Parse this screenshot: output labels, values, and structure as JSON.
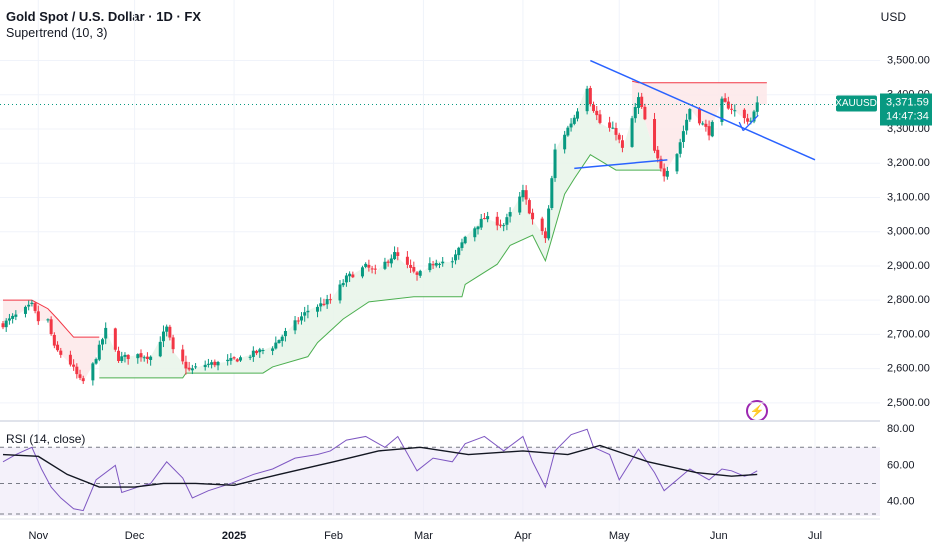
{
  "header": {
    "title": "Gold Spot / U.S. Dollar · 1D · FX",
    "indicator": "Supertrend (10, 3)",
    "currency": "USD"
  },
  "price_panel": {
    "symbol_tag": "XAUUSD",
    "last_price": "3,371.59",
    "countdown": "14:47:34",
    "colors": {
      "up": "#089981",
      "down": "#f23645",
      "supertrend_up_line": "#4caf50",
      "supertrend_up_fill": "#e8f5e9",
      "supertrend_down_line": "#f23645",
      "supertrend_down_fill": "#fde7e9",
      "trendline": "#2962ff",
      "price_tag": "#089981"
    }
  },
  "rsi_panel": {
    "label": "RSI (14, close)",
    "colors": {
      "rsi": "#7e57c2",
      "ma": "#131722",
      "band_fill": "#ede7f6"
    }
  },
  "icons": {
    "alert": "lightning-icon"
  },
  "chart_data": [
    {
      "type": "candlestick",
      "title": "Gold Spot / U.S. Dollar · 1D · FX",
      "ylim": [
        2450,
        3560
      ],
      "y_ticks": [
        2500,
        2600,
        2700,
        2800,
        2900,
        3000,
        3100,
        3200,
        3300,
        3400,
        3500
      ],
      "y_tick_labels": [
        "2,500.00",
        "2,600.00",
        "2,700.00",
        "2,800.00",
        "2,900.00",
        "3,000.00",
        "3,100.00",
        "3,200.00",
        "3,300.00",
        "3,400.00",
        "3,500.00"
      ],
      "x_tick_labels": [
        "Nov",
        "Dec",
        "2025",
        "Feb",
        "Mar",
        "Apr",
        "May",
        "Jun",
        "Jul"
      ],
      "x_tick_dates": [
        "2024-11-01",
        "2024-12-01",
        "2025-01-01",
        "2025-02-01",
        "2025-03-01",
        "2025-04-01",
        "2025-05-01",
        "2025-06-01",
        "2025-07-01"
      ],
      "close_path": [
        [
          "2024-10-21",
          2730
        ],
        [
          "2024-10-30",
          2785
        ],
        [
          "2024-11-01",
          2740
        ],
        [
          "2024-11-04",
          2740
        ],
        [
          "2024-11-06",
          2660
        ],
        [
          "2024-11-11",
          2615
        ],
        [
          "2024-11-14",
          2565
        ],
        [
          "2024-11-15",
          2562
        ],
        [
          "2024-11-18",
          2610
        ],
        [
          "2024-11-22",
          2712
        ],
        [
          "2024-11-26",
          2630
        ],
        [
          "2024-12-02",
          2640
        ],
        [
          "2024-12-06",
          2635
        ],
        [
          "2024-12-11",
          2718
        ],
        [
          "2024-12-13",
          2650
        ],
        [
          "2024-12-18",
          2595
        ],
        [
          "2024-12-23",
          2612
        ],
        [
          "2024-12-30",
          2620
        ],
        [
          "2025-01-06",
          2640
        ],
        [
          "2025-01-13",
          2665
        ],
        [
          "2025-01-17",
          2705
        ],
        [
          "2025-01-24",
          2770
        ],
        [
          "2025-01-31",
          2800
        ],
        [
          "2025-02-05",
          2865
        ],
        [
          "2025-02-11",
          2898
        ],
        [
          "2025-02-14",
          2882
        ],
        [
          "2025-02-20",
          2935
        ],
        [
          "2025-02-27",
          2870
        ],
        [
          "2025-03-05",
          2915
        ],
        [
          "2025-03-10",
          2910
        ],
        [
          "2025-03-14",
          2985
        ],
        [
          "2025-03-20",
          3040
        ],
        [
          "2025-03-26",
          3020
        ],
        [
          "2025-04-01",
          3115
        ],
        [
          "2025-04-04",
          3035
        ],
        [
          "2025-04-08",
          2982
        ],
        [
          "2025-04-11",
          3238
        ],
        [
          "2025-04-17",
          3335
        ],
        [
          "2025-04-21",
          3425
        ],
        [
          "2025-04-22",
          3380
        ],
        [
          "2025-04-25",
          3318
        ],
        [
          "2025-04-30",
          3290
        ],
        [
          "2025-05-02",
          3240
        ],
        [
          "2025-05-07",
          3390
        ],
        [
          "2025-05-12",
          3230
        ],
        [
          "2025-05-15",
          3170
        ],
        [
          "2025-05-19",
          3230
        ],
        [
          "2025-05-23",
          3360
        ],
        [
          "2025-05-29",
          3290
        ],
        [
          "2025-06-02",
          3380
        ],
        [
          "2025-06-05",
          3360
        ],
        [
          "2025-06-09",
          3330
        ],
        [
          "2025-06-11",
          3325
        ],
        [
          "2025-06-13",
          3371.59
        ]
      ],
      "supertrend": [
        {
          "trend": "down",
          "points": [
            [
              "2024-10-21",
              2800
            ],
            [
              "2024-10-30",
              2800
            ],
            [
              "2024-11-04",
              2775
            ],
            [
              "2024-11-07",
              2745
            ],
            [
              "2024-11-12",
              2692
            ],
            [
              "2024-11-20",
              2692
            ]
          ]
        },
        {
          "trend": "up",
          "points": [
            [
              "2024-11-20",
              2573
            ],
            [
              "2024-12-16",
              2573
            ],
            [
              "2024-12-17",
              2587
            ],
            [
              "2025-01-10",
              2587
            ],
            [
              "2025-01-13",
              2605
            ],
            [
              "2025-01-24",
              2635
            ],
            [
              "2025-01-27",
              2676
            ],
            [
              "2025-02-04",
              2745
            ],
            [
              "2025-02-12",
              2795
            ],
            [
              "2025-02-26",
              2810
            ],
            [
              "2025-03-13",
              2810
            ],
            [
              "2025-03-14",
              2846
            ],
            [
              "2025-03-24",
              2905
            ],
            [
              "2025-03-28",
              2960
            ],
            [
              "2025-04-04",
              2990
            ],
            [
              "2025-04-08",
              2915
            ],
            [
              "2025-04-14",
              3110
            ],
            [
              "2025-04-17",
              3155
            ],
            [
              "2025-04-22",
              3225
            ],
            [
              "2025-04-30",
              3180
            ],
            [
              "2025-05-14",
              3180
            ]
          ]
        },
        {
          "trend": "down",
          "points": [
            [
              "2025-05-05",
              3440
            ],
            [
              "2025-05-07",
              3435
            ],
            [
              "2025-06-16",
              3435
            ]
          ]
        }
      ],
      "trendlines": [
        {
          "from": [
            "2025-04-22",
            3500
          ],
          "to": [
            "2025-07-01",
            3210
          ]
        },
        {
          "from": [
            "2025-04-17",
            3185
          ],
          "to": [
            "2025-05-16",
            3210
          ]
        }
      ],
      "last_price": 3371.59
    },
    {
      "type": "line",
      "title": "RSI (14, close)",
      "ylim": [
        32,
        84
      ],
      "y_ticks": [
        40,
        60,
        80
      ],
      "y_tick_labels": [
        "40.00",
        "60.00",
        "80.00"
      ],
      "bands": [
        30,
        50,
        70
      ],
      "series": [
        {
          "name": "RSI",
          "values": [
            [
              "2024-10-21",
              62
            ],
            [
              "2024-10-25",
              66
            ],
            [
              "2024-10-30",
              70
            ],
            [
              "2024-11-02",
              58
            ],
            [
              "2024-11-05",
              48
            ],
            [
              "2024-11-08",
              42
            ],
            [
              "2024-11-12",
              36
            ],
            [
              "2024-11-15",
              35
            ],
            [
              "2024-11-19",
              52
            ],
            [
              "2024-11-25",
              60
            ],
            [
              "2024-11-27",
              45
            ],
            [
              "2024-12-02",
              48
            ],
            [
              "2024-12-06",
              50
            ],
            [
              "2024-12-11",
              62
            ],
            [
              "2024-12-16",
              53
            ],
            [
              "2024-12-19",
              42
            ],
            [
              "2024-12-24",
              46
            ],
            [
              "2024-12-31",
              50
            ],
            [
              "2025-01-07",
              55
            ],
            [
              "2025-01-13",
              58
            ],
            [
              "2025-01-20",
              64
            ],
            [
              "2025-01-27",
              66
            ],
            [
              "2025-01-31",
              68
            ],
            [
              "2025-02-05",
              74
            ],
            [
              "2025-02-11",
              76
            ],
            [
              "2025-02-17",
              70
            ],
            [
              "2025-02-21",
              76
            ],
            [
              "2025-02-27",
              57
            ],
            [
              "2025-03-04",
              64
            ],
            [
              "2025-03-10",
              62
            ],
            [
              "2025-03-14",
              72
            ],
            [
              "2025-03-20",
              76
            ],
            [
              "2025-03-26",
              68
            ],
            [
              "2025-04-01",
              76
            ],
            [
              "2025-04-04",
              62
            ],
            [
              "2025-04-08",
              48
            ],
            [
              "2025-04-11",
              68
            ],
            [
              "2025-04-16",
              77
            ],
            [
              "2025-04-21",
              80
            ],
            [
              "2025-04-23",
              70
            ],
            [
              "2025-04-28",
              66
            ],
            [
              "2025-05-01",
              52
            ],
            [
              "2025-05-07",
              69
            ],
            [
              "2025-05-12",
              56
            ],
            [
              "2025-05-15",
              46
            ],
            [
              "2025-05-19",
              52
            ],
            [
              "2025-05-23",
              58
            ],
            [
              "2025-05-29",
              52
            ],
            [
              "2025-06-02",
              58
            ],
            [
              "2025-06-05",
              57
            ],
            [
              "2025-06-09",
              54
            ],
            [
              "2025-06-11",
              55
            ],
            [
              "2025-06-13",
              57
            ]
          ]
        },
        {
          "name": "RSI MA",
          "values": [
            [
              "2024-10-21",
              66
            ],
            [
              "2024-11-01",
              65
            ],
            [
              "2024-11-10",
              55
            ],
            [
              "2024-11-20",
              48
            ],
            [
              "2024-12-01",
              48
            ],
            [
              "2024-12-10",
              50
            ],
            [
              "2024-12-20",
              50
            ],
            [
              "2025-01-01",
              49
            ],
            [
              "2025-01-15",
              55
            ],
            [
              "2025-02-01",
              62
            ],
            [
              "2025-02-15",
              68
            ],
            [
              "2025-02-28",
              70
            ],
            [
              "2025-03-15",
              66
            ],
            [
              "2025-04-01",
              68
            ],
            [
              "2025-04-15",
              66
            ],
            [
              "2025-04-25",
              71
            ],
            [
              "2025-05-10",
              62
            ],
            [
              "2025-05-25",
              56
            ],
            [
              "2025-06-05",
              54
            ],
            [
              "2025-06-13",
              55
            ]
          ]
        }
      ]
    }
  ]
}
